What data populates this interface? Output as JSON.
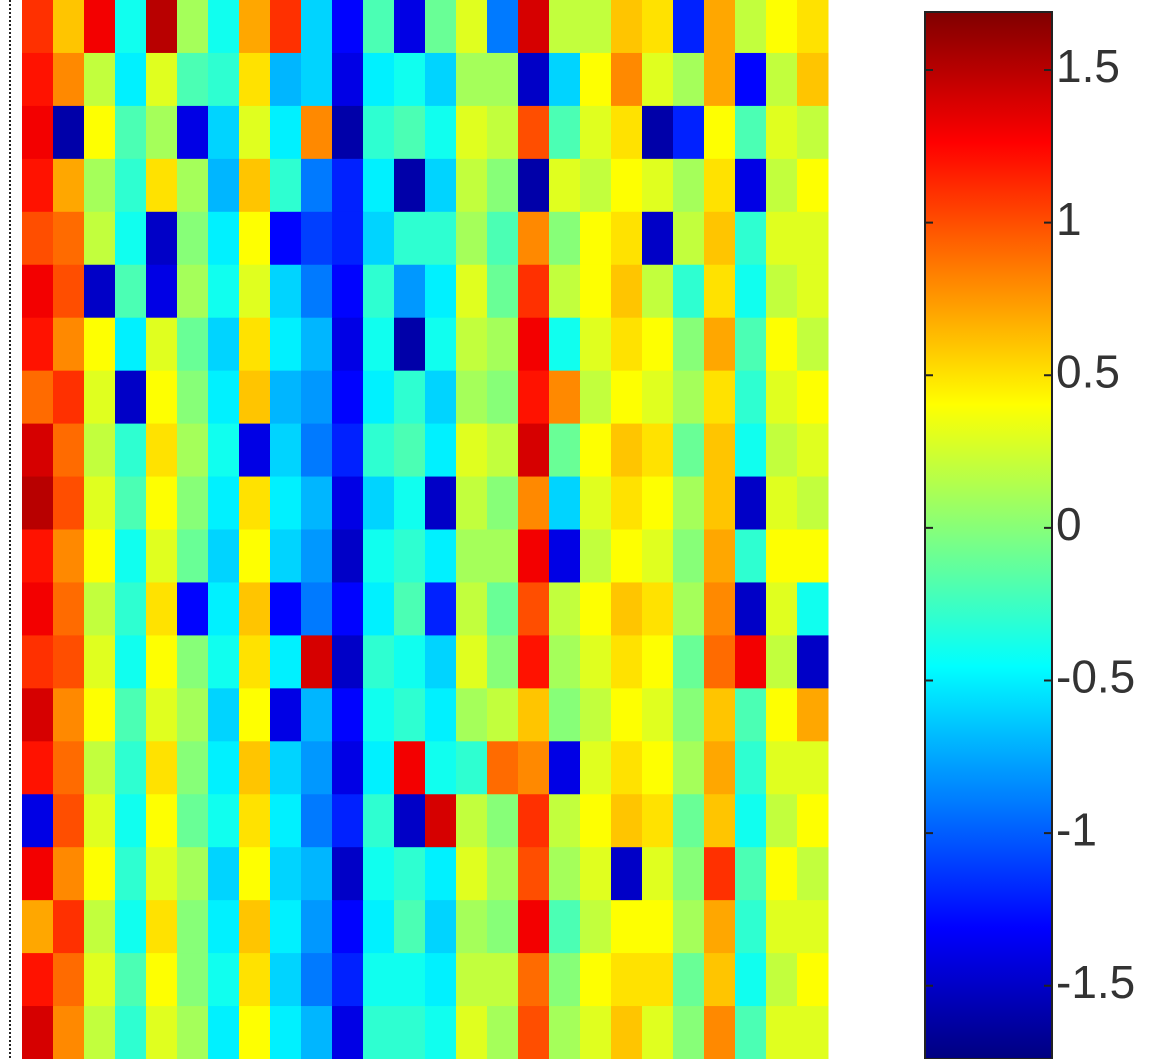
{
  "chart_data": {
    "type": "heatmap",
    "colormap": "jet",
    "clim": [
      -1.74,
      1.69
    ],
    "colorbar_ticks": [
      -1.5,
      -1,
      -0.5,
      0,
      0.5,
      1,
      1.5
    ],
    "z": [
      [
        1.1,
        0.6,
        1.3,
        -0.4,
        1.5,
        0.1,
        -0.4,
        0.7,
        1.1,
        -0.6,
        -1.3,
        -0.2,
        -1.4,
        -0.1,
        0.3,
        -0.9,
        1.4,
        0.2,
        0.2,
        0.6,
        0.5,
        -1.2,
        0.7,
        0.2,
        0.4,
        0.5
      ],
      [
        1.2,
        0.8,
        0.2,
        -0.5,
        0.3,
        -0.2,
        -0.3,
        0.5,
        -0.7,
        -0.6,
        -1.4,
        -0.5,
        -0.4,
        -0.6,
        0.1,
        0.1,
        -1.5,
        -0.6,
        0.4,
        0.8,
        0.3,
        0.1,
        0.7,
        -1.3,
        0.2,
        0.6
      ],
      [
        1.3,
        -1.6,
        0.4,
        -0.2,
        0.1,
        -1.4,
        -0.6,
        0.3,
        -0.5,
        0.8,
        -1.6,
        -0.3,
        -0.2,
        -0.4,
        0.3,
        0.2,
        1.0,
        -0.2,
        0.3,
        0.5,
        -1.6,
        -1.2,
        0.4,
        -0.2,
        0.3,
        0.2
      ],
      [
        1.2,
        0.7,
        0.1,
        -0.3,
        0.5,
        0.1,
        -0.7,
        0.6,
        -0.3,
        -0.9,
        -1.2,
        -0.5,
        -1.6,
        -0.6,
        0.2,
        0.0,
        -1.6,
        0.3,
        0.2,
        0.4,
        0.3,
        0.1,
        0.5,
        -1.4,
        0.2,
        0.4
      ],
      [
        1.0,
        0.9,
        0.2,
        -0.4,
        -1.5,
        0.0,
        -0.5,
        0.4,
        -1.3,
        -1.1,
        -1.2,
        -0.6,
        -0.3,
        -0.3,
        0.1,
        -0.2,
        0.8,
        0.0,
        0.4,
        0.5,
        -1.5,
        0.2,
        0.6,
        -0.3,
        0.3,
        0.3
      ],
      [
        1.3,
        1.0,
        -1.5,
        -0.2,
        -1.4,
        0.1,
        -0.4,
        0.3,
        -0.6,
        -0.9,
        -1.3,
        -0.3,
        -0.8,
        -0.5,
        0.3,
        -0.1,
        1.1,
        0.2,
        0.4,
        0.6,
        0.2,
        -0.3,
        0.5,
        -0.4,
        0.2,
        0.3
      ],
      [
        1.2,
        0.8,
        0.4,
        -0.5,
        0.3,
        -0.1,
        -0.6,
        0.5,
        -0.5,
        -0.7,
        -1.4,
        -0.4,
        -1.6,
        -0.4,
        0.2,
        0.1,
        1.3,
        -0.4,
        0.3,
        0.5,
        0.4,
        0.0,
        0.7,
        -0.2,
        0.4,
        0.2
      ],
      [
        0.9,
        1.1,
        0.3,
        -1.5,
        0.4,
        0.0,
        -0.5,
        0.6,
        -0.7,
        -0.8,
        -1.3,
        -0.5,
        -0.3,
        -0.6,
        0.1,
        0.0,
        1.2,
        0.8,
        0.2,
        0.4,
        0.3,
        0.1,
        0.5,
        -0.3,
        0.3,
        0.4
      ],
      [
        1.4,
        0.9,
        0.2,
        -0.3,
        0.5,
        0.1,
        -0.4,
        -1.4,
        -0.6,
        -0.9,
        -1.2,
        -0.3,
        -0.2,
        -0.5,
        0.3,
        0.2,
        1.4,
        -0.1,
        0.4,
        0.6,
        0.5,
        -0.1,
        0.6,
        -0.4,
        0.2,
        0.3
      ],
      [
        1.5,
        1.0,
        0.3,
        -0.2,
        0.4,
        0.0,
        -0.5,
        0.5,
        -0.5,
        -0.7,
        -1.4,
        -0.6,
        -0.4,
        -1.5,
        0.2,
        0.0,
        0.8,
        -0.6,
        0.3,
        0.5,
        0.4,
        0.1,
        0.6,
        -1.5,
        0.3,
        0.2
      ],
      [
        1.2,
        0.8,
        0.4,
        -0.4,
        0.3,
        -0.1,
        -0.6,
        0.4,
        -0.6,
        -0.8,
        -1.5,
        -0.4,
        -0.3,
        -0.5,
        0.1,
        0.1,
        1.3,
        -1.4,
        0.2,
        0.4,
        0.3,
        0.0,
        0.7,
        -0.3,
        0.4,
        0.4
      ],
      [
        1.3,
        0.9,
        0.2,
        -0.3,
        0.5,
        -1.3,
        -0.5,
        0.6,
        -1.3,
        -0.9,
        -1.3,
        -0.5,
        -0.2,
        -1.2,
        0.2,
        -0.1,
        1.0,
        0.2,
        0.4,
        0.6,
        0.5,
        0.1,
        0.8,
        -1.5,
        0.3,
        -0.4
      ],
      [
        1.1,
        1.0,
        0.3,
        -0.4,
        0.4,
        0.0,
        -0.4,
        0.5,
        -0.5,
        1.4,
        -1.5,
        -0.3,
        -0.4,
        -0.6,
        0.3,
        0.0,
        1.2,
        0.1,
        0.3,
        0.5,
        0.4,
        -0.1,
        0.9,
        1.3,
        0.2,
        -1.5
      ],
      [
        1.4,
        0.8,
        0.4,
        -0.2,
        0.3,
        0.1,
        -0.6,
        0.4,
        -1.4,
        -0.7,
        -1.3,
        -0.4,
        -0.3,
        -0.5,
        0.1,
        0.2,
        0.6,
        0.0,
        0.2,
        0.4,
        0.3,
        0.0,
        0.6,
        -0.2,
        0.4,
        0.7
      ],
      [
        1.2,
        0.9,
        0.2,
        -0.3,
        0.5,
        0.0,
        -0.5,
        0.6,
        -0.6,
        -0.8,
        -1.4,
        -0.5,
        1.3,
        -0.4,
        -0.3,
        0.9,
        0.8,
        -1.4,
        0.3,
        0.5,
        0.4,
        0.1,
        0.7,
        -0.3,
        0.3,
        0.3
      ],
      [
        -1.4,
        1.0,
        0.3,
        -0.4,
        0.4,
        -0.1,
        -0.4,
        0.5,
        -0.5,
        -0.9,
        -1.2,
        -0.3,
        -1.5,
        1.4,
        0.2,
        0.0,
        1.1,
        0.2,
        0.4,
        0.6,
        0.5,
        -0.1,
        0.6,
        -0.4,
        0.2,
        0.4
      ],
      [
        1.3,
        0.8,
        0.4,
        -0.3,
        0.3,
        0.1,
        -0.6,
        0.4,
        -0.6,
        -0.7,
        -1.5,
        -0.4,
        -0.3,
        -0.5,
        0.3,
        0.1,
        1.0,
        0.1,
        0.3,
        -1.5,
        0.3,
        0.0,
        1.1,
        -0.2,
        0.4,
        0.2
      ],
      [
        0.7,
        1.1,
        0.2,
        -0.4,
        0.5,
        0.0,
        -0.5,
        0.6,
        -0.5,
        -0.8,
        -1.3,
        -0.5,
        -0.2,
        -0.6,
        0.1,
        0.0,
        1.3,
        -0.2,
        0.2,
        0.4,
        0.4,
        0.1,
        0.7,
        -0.3,
        0.3,
        0.3
      ],
      [
        1.2,
        0.9,
        0.3,
        -0.2,
        0.4,
        0.0,
        -0.4,
        0.5,
        -0.6,
        -0.9,
        -1.2,
        -0.4,
        -0.4,
        -0.5,
        0.2,
        0.2,
        0.9,
        0.0,
        0.4,
        0.5,
        0.5,
        -0.1,
        0.6,
        -0.4,
        0.2,
        0.4
      ],
      [
        1.4,
        0.8,
        0.2,
        -0.3,
        0.3,
        0.1,
        -0.5,
        0.4,
        -0.5,
        -0.7,
        -1.4,
        -0.3,
        -0.3,
        -0.4,
        0.3,
        0.1,
        1.0,
        0.1,
        0.3,
        0.6,
        0.3,
        0.0,
        0.8,
        -0.2,
        0.3,
        0.3
      ]
    ]
  }
}
